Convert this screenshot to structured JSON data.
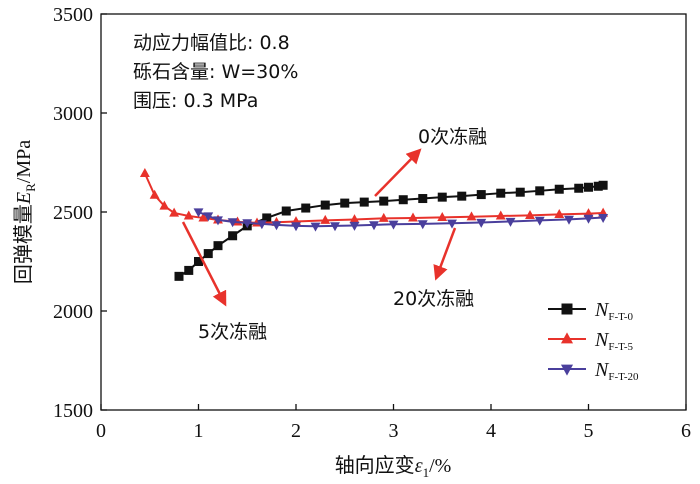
{
  "chart_data": {
    "type": "scatter",
    "xlabel": {
      "main": "轴向应变",
      "symbol": "ε",
      "sub": "1",
      "unit": "/%"
    },
    "ylabel": {
      "main": "回弹模量",
      "symbol": "E",
      "sub": "R",
      "unit": "/MPa"
    },
    "xlim": [
      0,
      6
    ],
    "ylim": [
      1500,
      3500
    ],
    "xticks": [
      "0",
      "1",
      "2",
      "3",
      "4",
      "5",
      "6"
    ],
    "yticks": [
      "1500",
      "2000",
      "2500",
      "3000",
      "3500"
    ],
    "info_lines": [
      "动应力幅值比: 0.8",
      "砾石含量: W=30%",
      "围压: 0.3 MPa"
    ],
    "annotations": [
      "0次冻融",
      "5次冻融",
      "20次冻融"
    ],
    "legend_position": "bottom-right",
    "grid": false,
    "series": [
      {
        "name": "N_F-T-0",
        "label_main": "N",
        "label_sub": "F-T-0",
        "color": "#111111",
        "marker": "square",
        "x": [
          0.8,
          0.9,
          1.0,
          1.1,
          1.2,
          1.35,
          1.5,
          1.7,
          1.9,
          2.1,
          2.3,
          2.5,
          2.7,
          2.9,
          3.1,
          3.3,
          3.5,
          3.7,
          3.9,
          4.1,
          4.3,
          4.5,
          4.7,
          4.9,
          5.0,
          5.1,
          5.15
        ],
        "y": [
          2175,
          2205,
          2250,
          2290,
          2330,
          2380,
          2430,
          2470,
          2505,
          2520,
          2535,
          2545,
          2550,
          2555,
          2562,
          2568,
          2575,
          2580,
          2588,
          2595,
          2600,
          2607,
          2615,
          2620,
          2625,
          2630,
          2635
        ]
      },
      {
        "name": "N_F-T-5",
        "label_main": "N",
        "label_sub": "F-T-5",
        "color": "#e8322b",
        "marker": "triangle-up",
        "x": [
          0.45,
          0.55,
          0.65,
          0.75,
          0.9,
          1.05,
          1.2,
          1.4,
          1.6,
          1.8,
          2.0,
          2.3,
          2.6,
          2.9,
          3.2,
          3.5,
          3.8,
          4.1,
          4.4,
          4.7,
          5.0,
          5.15
        ],
        "y": [
          2695,
          2585,
          2530,
          2495,
          2480,
          2470,
          2460,
          2450,
          2445,
          2448,
          2452,
          2458,
          2462,
          2468,
          2470,
          2473,
          2476,
          2480,
          2483,
          2488,
          2492,
          2495
        ]
      },
      {
        "name": "N_F-T-20",
        "label_main": "N",
        "label_sub": "F-T-20",
        "color": "#4a3f9c",
        "marker": "triangle-down",
        "x": [
          1.0,
          1.1,
          1.2,
          1.35,
          1.5,
          1.65,
          1.8,
          2.0,
          2.2,
          2.4,
          2.6,
          2.8,
          3.0,
          3.3,
          3.6,
          3.9,
          4.2,
          4.5,
          4.8,
          5.0,
          5.15
        ],
        "y": [
          2500,
          2480,
          2460,
          2450,
          2445,
          2440,
          2435,
          2430,
          2428,
          2430,
          2432,
          2435,
          2438,
          2440,
          2443,
          2447,
          2452,
          2458,
          2463,
          2468,
          2472
        ]
      }
    ]
  }
}
